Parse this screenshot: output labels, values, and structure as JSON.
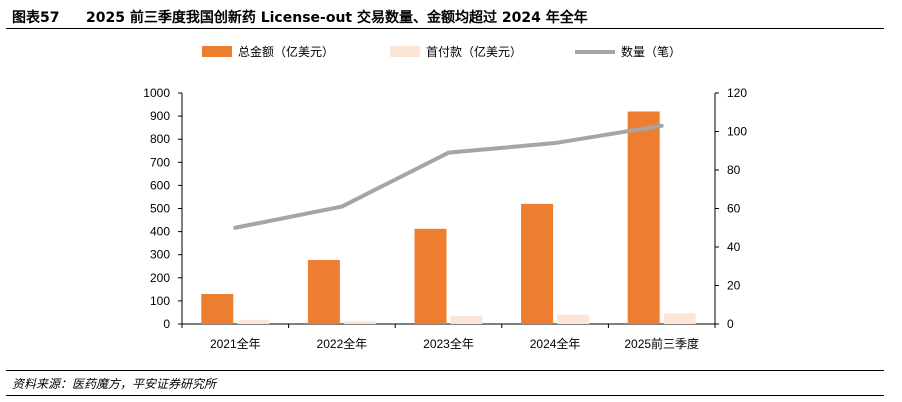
{
  "header": {
    "label": "图表57",
    "title": "2025 前三季度我国创新药 License-out 交易数量、金额均超过 2024 年全年"
  },
  "footer": {
    "source": "资料来源：医药魔方，平安证券研究所"
  },
  "colors": {
    "total": "#ED7D31",
    "upfront": "#FCE4D6",
    "count": "#A5A5A5",
    "axis": "#000000"
  },
  "chart_data": {
    "type": "bar",
    "categories": [
      "2021全年",
      "2022全年",
      "2023全年",
      "2024全年",
      "2025前三季度"
    ],
    "series": [
      {
        "name": "总金额（亿美元）",
        "kind": "bar",
        "axis": "left",
        "values": [
          130,
          277,
          412,
          520,
          920
        ]
      },
      {
        "name": "首付款（亿美元）",
        "kind": "bar",
        "axis": "left",
        "values": [
          18,
          12,
          35,
          40,
          47
        ]
      },
      {
        "name": "数量（笔）",
        "kind": "line",
        "axis": "right",
        "values": [
          50,
          61,
          89,
          94,
          103
        ]
      }
    ],
    "y_left": {
      "min": 0,
      "max": 1000,
      "ticks": [
        0,
        100,
        200,
        300,
        400,
        500,
        600,
        700,
        800,
        900,
        1000
      ]
    },
    "y_right": {
      "min": 0,
      "max": 120,
      "ticks": [
        0,
        20,
        40,
        60,
        80,
        100,
        120
      ]
    },
    "legend_position": "top-center",
    "grid": false
  }
}
